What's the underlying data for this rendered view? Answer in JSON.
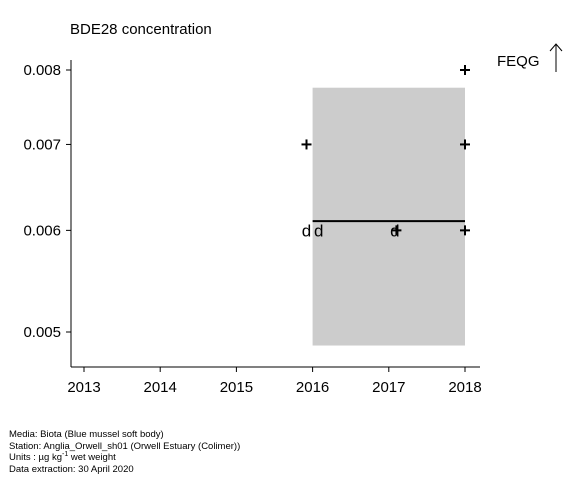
{
  "chart_data": {
    "type": "scatter",
    "title": "BDE28 concentration",
    "xlabel": "",
    "ylabel": "",
    "x_ticks": [
      "2013",
      "2014",
      "2015",
      "2016",
      "2017",
      "2018"
    ],
    "y_ticks": [
      "0.005",
      "0.006",
      "0.007",
      "0.008"
    ],
    "xlim": [
      2012.8,
      2018.2
    ],
    "ylim": [
      0.00486,
      0.00815
    ],
    "y_scale": "log",
    "grid": false,
    "series": [
      {
        "marker": "+",
        "points": [
          {
            "x": 2015.92,
            "y": 0.007
          },
          {
            "x": 2018.0,
            "y": 0.008
          },
          {
            "x": 2018.0,
            "y": 0.007
          },
          {
            "x": 2018.0,
            "y": 0.006
          }
        ]
      },
      {
        "marker": "d",
        "points": [
          {
            "x": 2015.92,
            "y": 0.006
          },
          {
            "x": 2016.08,
            "y": 0.006
          },
          {
            "x": 2017.08,
            "y": 0.006
          }
        ]
      },
      {
        "marker": "+",
        "points": [
          {
            "x": 2017.1,
            "y": 0.006
          }
        ]
      }
    ],
    "trend": {
      "x": [
        2016.0,
        2018.0
      ],
      "y": [
        0.0061,
        0.0061
      ]
    },
    "confidence_band": {
      "x": [
        2016.0,
        2018.0
      ],
      "y_low": 0.00488,
      "y_high": 0.00775,
      "color": "#cccccc"
    },
    "assessment_criterion": {
      "label": "FEQG",
      "arrow": "up"
    }
  },
  "footer": {
    "media": "Media: Biota (Blue mussel soft body)",
    "station": "Station: Anglia_Orwell_sh01 (Orwell Estuary (Colimer))",
    "units_prefix": "Units : µg kg",
    "units_sup": "-1",
    "units_suffix": " wet weight",
    "extraction": "Data extraction: 30 April 2020"
  }
}
